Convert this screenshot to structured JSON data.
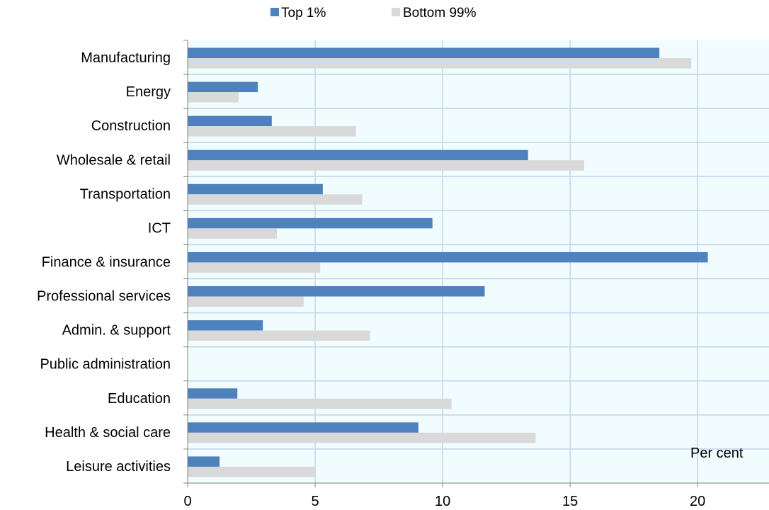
{
  "chart_data": {
    "type": "bar",
    "orientation": "horizontal",
    "title": "",
    "xlabel": "",
    "ylabel": "",
    "unit_label": "Per cent",
    "categories": [
      "Manufacturing",
      "Energy",
      "Construction",
      "Wholesale & retail",
      "Transportation",
      "ICT",
      "Finance & insurance",
      "Professional services",
      "Admin. & support",
      "Public administration",
      "Education",
      "Health & social care",
      "Leisure activities"
    ],
    "series": [
      {
        "name": "Top 1%",
        "color": "#4F81BD",
        "values": [
          18.5,
          2.75,
          3.3,
          13.35,
          5.3,
          9.6,
          20.4,
          11.65,
          2.95,
          0,
          1.95,
          9.05,
          1.25
        ]
      },
      {
        "name": "Bottom 99%",
        "color": "#D9D9D9",
        "values": [
          19.75,
          2.0,
          6.6,
          15.55,
          6.85,
          3.5,
          5.2,
          4.55,
          7.15,
          0,
          10.35,
          13.65,
          5.0
        ]
      }
    ],
    "xlim": [
      0,
      22.8
    ],
    "xticks": [
      0,
      5,
      10,
      15,
      20
    ],
    "grid": true,
    "legend_position": "top",
    "plot_background": "#F0FCFD",
    "grid_color": "#C5D3EA"
  }
}
